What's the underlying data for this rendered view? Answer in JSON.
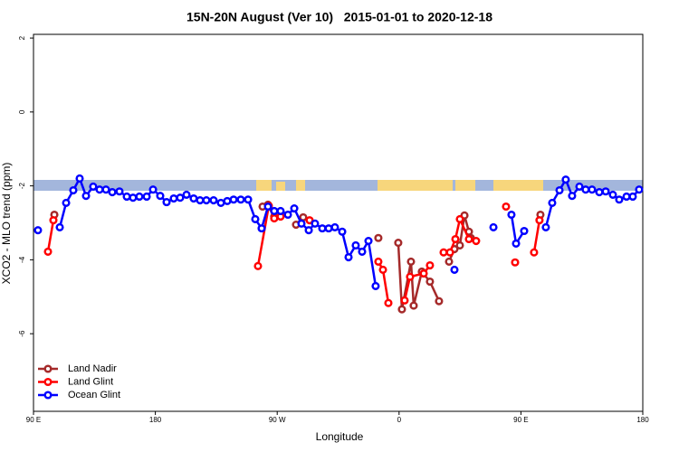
{
  "chart_data": {
    "type": "line",
    "title": "15N-20N August (Ver 10)   2015-01-01 to 2020-12-18",
    "x_label": "Longitude",
    "y_label": "XCO2 - MLO trend (ppm)",
    "xlim": [
      90,
      540
    ],
    "ylim": [
      -8.1,
      2.1
    ],
    "xticks": [
      {
        "value": 90,
        "label": "90 E"
      },
      180,
      {
        "value": 270,
        "label": "90 W"
      },
      {
        "value": 360,
        "label": "0"
      },
      {
        "value": 450,
        "label": "90 E"
      },
      {
        "value": 540,
        "label": "180"
      }
    ],
    "yticks": [
      2,
      0,
      -2,
      -4,
      -6
    ],
    "legend": "bottomleft",
    "series": [
      {
        "name": "Land Nadir",
        "color": "#a52a2a",
        "x": [
          105.4,
          null,
          259.2,
          263.2,
          267.8,
          null,
          283.9,
          289.2,
          null,
          344.7,
          null,
          359.4,
          362.1,
          368.8,
          370.8,
          376.8,
          382.8,
          389.5,
          null,
          396.9,
          400.9,
          404.9,
          408.3,
          411.6,
          413.0,
          null,
          464.4
        ],
        "values": [
          -2.78,
          null,
          -2.56,
          -2.51,
          -2.83,
          null,
          -3.05,
          -2.85,
          null,
          -3.41,
          null,
          -3.54,
          -5.34,
          -4.05,
          -5.24,
          -4.32,
          -4.59,
          -5.12,
          null,
          -4.05,
          -3.71,
          -3.61,
          -2.8,
          -3.24,
          -3.41,
          null,
          -2.78
        ]
      },
      {
        "name": "Land Glint",
        "color": "#ff0000",
        "x": [
          100.7,
          104.7,
          null,
          255.8,
          263.8,
          267.8,
          272.5,
          null,
          293.9,
          null,
          344.7,
          348.1,
          352.1,
          null,
          364.1,
          368.1,
          378.2,
          382.8,
          null,
          392.9,
          397.6,
          401.6,
          404.9,
          411.6,
          416.9,
          null,
          439.0,
          null,
          445.7,
          null,
          459.7,
          463.7
        ],
        "values": [
          -3.78,
          -2.93,
          null,
          -4.17,
          -2.54,
          -2.88,
          -2.83,
          null,
          -2.93,
          null,
          -4.05,
          -4.27,
          -5.17,
          null,
          -5.1,
          -4.46,
          -4.37,
          -4.15,
          null,
          -3.8,
          -3.8,
          -3.44,
          -2.9,
          -3.44,
          -3.49,
          null,
          -2.56,
          null,
          -4.07,
          null,
          -3.8,
          -2.93
        ]
      },
      {
        "name": "Ocean Glint",
        "color": "#0000ff",
        "x": [
          93.3,
          null,
          109.4,
          114.1,
          119.4,
          124.1,
          128.8,
          134.1,
          138.8,
          143.5,
          148.2,
          153.5,
          158.9,
          163.5,
          168.2,
          173.6,
          178.3,
          183.6,
          188.3,
          193.6,
          198.3,
          203.0,
          208.3,
          213.0,
          217.7,
          223.0,
          228.4,
          233.1,
          237.8,
          243.1,
          248.5,
          253.8,
          258.5,
          263.2,
          267.8,
          272.5,
          277.9,
          282.6,
          287.9,
          293.3,
          297.9,
          303.3,
          308.0,
          312.6,
          318.0,
          322.7,
          328.0,
          332.7,
          337.4,
          342.7,
          null,
          400.9,
          null,
          429.7,
          null,
          443.0,
          446.4,
          452.4,
          null,
          468.4,
          473.1,
          478.5,
          483.1,
          487.8,
          493.2,
          497.8,
          502.5,
          507.9,
          512.6,
          517.9,
          522.6,
          528.0,
          532.6,
          537.3
        ],
        "values": [
          -3.2,
          null,
          -3.12,
          -2.46,
          -2.12,
          -1.8,
          -2.27,
          -2.02,
          -2.1,
          -2.1,
          -2.17,
          -2.15,
          -2.29,
          -2.32,
          -2.29,
          -2.29,
          -2.1,
          -2.27,
          -2.44,
          -2.34,
          -2.32,
          -2.24,
          -2.34,
          -2.39,
          -2.39,
          -2.39,
          -2.46,
          -2.41,
          -2.37,
          -2.37,
          -2.37,
          -2.9,
          -3.15,
          -2.56,
          -2.68,
          -2.68,
          -2.78,
          -2.61,
          -3.02,
          -3.2,
          -3.02,
          -3.15,
          -3.15,
          -3.12,
          -3.24,
          -3.93,
          -3.61,
          -3.78,
          -3.49,
          -4.71,
          null,
          -4.27,
          null,
          -3.12,
          null,
          -2.78,
          -3.56,
          -3.22,
          null,
          -3.12,
          -2.46,
          -2.12,
          -1.83,
          -2.27,
          -2.02,
          -2.1,
          -2.1,
          -2.17,
          -2.15,
          -2.24,
          -2.37,
          -2.29,
          -2.29,
          -2.1
        ]
      }
    ]
  }
}
